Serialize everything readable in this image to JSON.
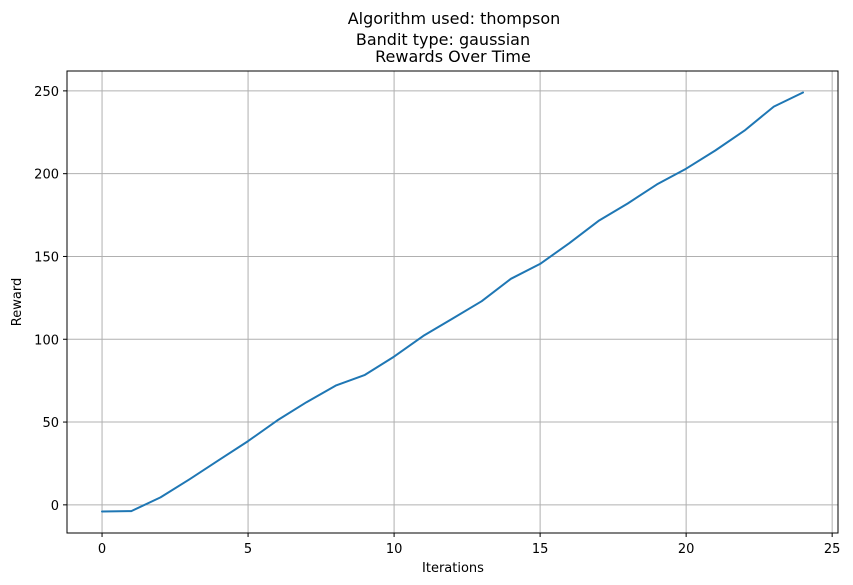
{
  "figure": {
    "suptitle_line1": "Algorithm used: thompson",
    "suptitle_line2": "Bandit type: gaussian"
  },
  "chart_data": {
    "type": "line",
    "title": "Rewards Over Time",
    "xlabel": "Iterations",
    "ylabel": "Reward",
    "xlim": [
      -1.2,
      25.2
    ],
    "ylim": [
      -17,
      262
    ],
    "xticks": [
      0,
      5,
      10,
      15,
      20,
      25
    ],
    "yticks": [
      0,
      50,
      100,
      150,
      200,
      250
    ],
    "grid": true,
    "line_color": "#1f77b4",
    "series": [
      {
        "x": [
          0,
          1,
          2,
          3,
          4,
          5,
          6,
          7,
          8,
          9,
          10,
          11,
          12,
          13,
          14,
          15,
          16,
          17,
          18,
          19,
          20,
          21,
          22,
          23,
          24
        ],
        "values": [
          -4,
          -3.8,
          4.5,
          15.5,
          27,
          38.5,
          51,
          62,
          72,
          78.5,
          89.5,
          102,
          112.5,
          123,
          136.5,
          145.5,
          158,
          171.5,
          182,
          193.5,
          203,
          214,
          226,
          240.5,
          249
        ]
      }
    ]
  }
}
